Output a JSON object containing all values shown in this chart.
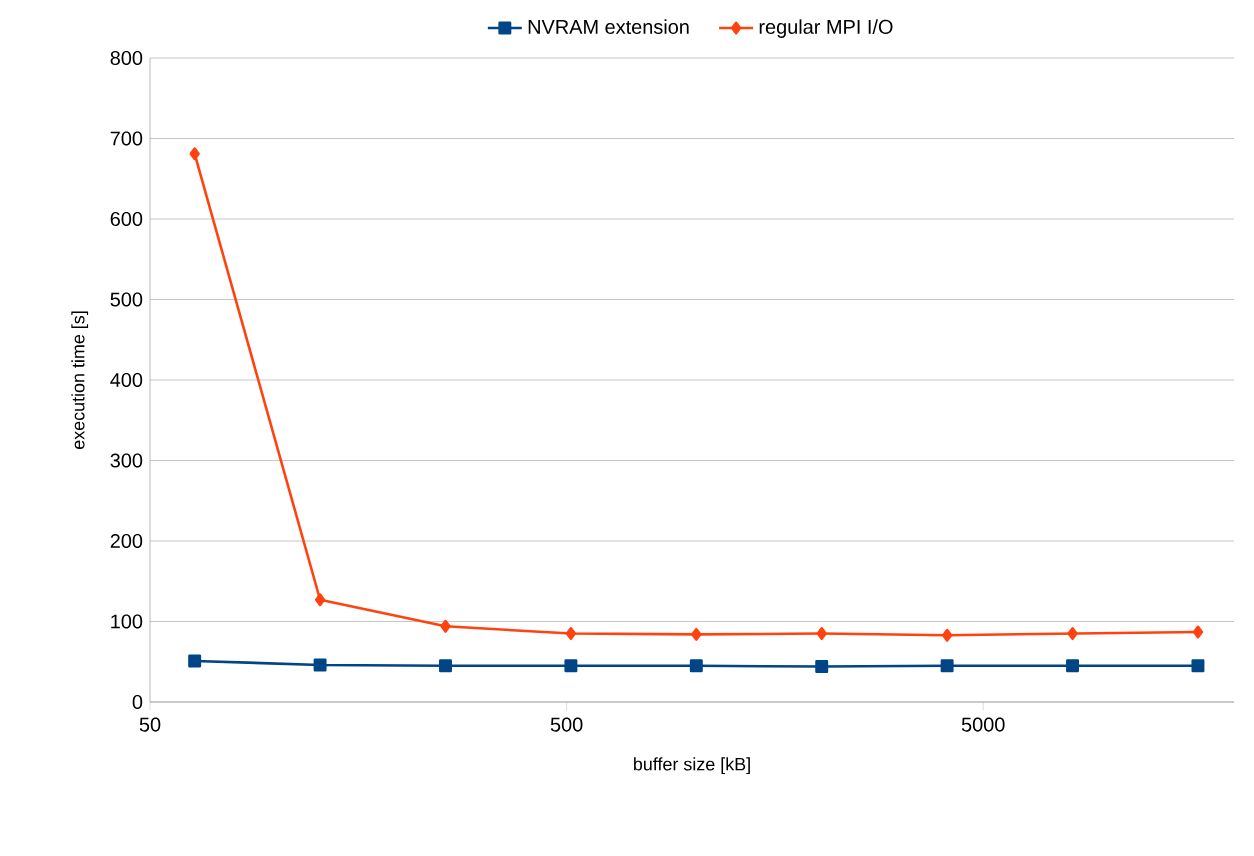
{
  "chart_data": {
    "type": "line",
    "xlabel": "buffer size [kB]",
    "ylabel": "execution time [s]",
    "log": "x",
    "xlim": [
      50,
      20000
    ],
    "xticks": [
      50,
      500,
      5000
    ],
    "ylim": [
      0,
      800
    ],
    "yticks": [
      0,
      100,
      200,
      300,
      400,
      500,
      600,
      700,
      800
    ],
    "grid": "y",
    "legend": "top",
    "x": [
      64,
      128,
      256,
      512,
      1024,
      2048,
      4096,
      8192,
      16384
    ],
    "series": [
      {
        "name": "NVRAM extension",
        "color": "#004586",
        "marker": "square",
        "values": [
          51,
          46,
          45,
          45,
          45,
          44,
          45,
          45,
          45
        ]
      },
      {
        "name": "regular MPI I/O",
        "color": "#ff420e",
        "marker": "diamond",
        "values": [
          681,
          127,
          94,
          85,
          84,
          85,
          83,
          85,
          87
        ]
      }
    ]
  }
}
